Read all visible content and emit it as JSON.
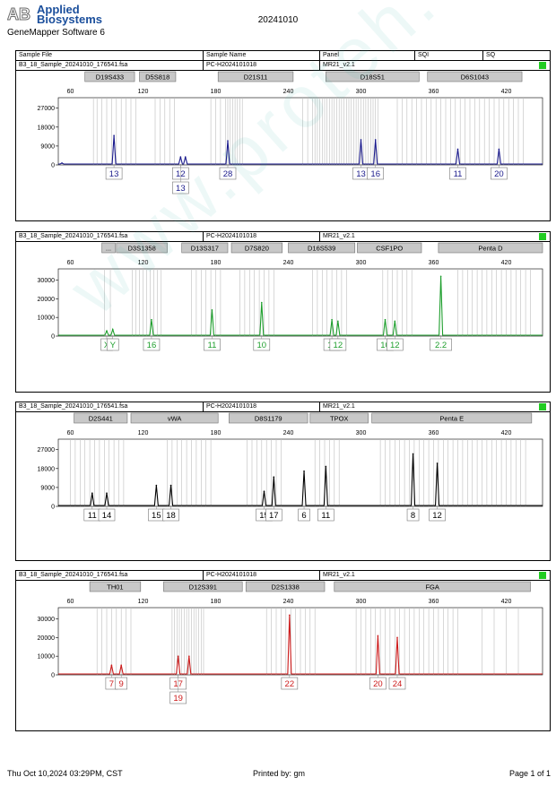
{
  "brand": {
    "line1": "Applied",
    "line2": "Biosystems",
    "software": "GeneMapper Software 6"
  },
  "run_date": "20241010",
  "header": {
    "sample_file": "Sample File",
    "sample_name": "Sample Name",
    "panel": "Panel",
    "sqi": "SQI",
    "sq": "SQ"
  },
  "footer": {
    "timestamp": "Thu Oct 10,2024 03:29PM, CST",
    "printed_by": "Printed by: gm",
    "page": "Page 1 of 1"
  },
  "watermark": "www.proteh.com.cn",
  "chart_data": [
    {
      "type": "line",
      "sample_file": "B3_18_Sample_20241010_176541.fsa",
      "sample_name": "PC-H2024101018",
      "panel": "MR21_v2.1",
      "color": "#1a1a8c",
      "xlim": [
        50,
        450
      ],
      "xticks": [
        60,
        120,
        180,
        240,
        300,
        360,
        420
      ],
      "ylim": [
        0,
        32000
      ],
      "yticks": [
        0,
        9000,
        18000,
        27000
      ],
      "markers": [
        {
          "label": "D19S433",
          "x0": 72,
          "x1": 113
        },
        {
          "label": "D5S818",
          "x0": 117,
          "x1": 147
        },
        {
          "label": "D21S11",
          "x0": 182,
          "x1": 244
        },
        {
          "label": "D18S51",
          "x0": 271,
          "x1": 348
        },
        {
          "label": "D6S1043",
          "x0": 355,
          "x1": 433
        }
      ],
      "bins": [
        79,
        82,
        86,
        90,
        94,
        98,
        102,
        106,
        110,
        114,
        130,
        134,
        138,
        142,
        146,
        176,
        180,
        184,
        188,
        190,
        192,
        194,
        196,
        198,
        200,
        202,
        252,
        256,
        260,
        262,
        264,
        266,
        268,
        270,
        272,
        274,
        276,
        278,
        280,
        282,
        284,
        286,
        288,
        290,
        292,
        294,
        296,
        298,
        300,
        302,
        304,
        306,
        308,
        310,
        312,
        314,
        330,
        334,
        338,
        342,
        346,
        350,
        354,
        358,
        362,
        366,
        370,
        374,
        378,
        382,
        386,
        390,
        394,
        398,
        402,
        406,
        410,
        414,
        418,
        422,
        426,
        430,
        434
      ],
      "peaks": [
        {
          "x": 53,
          "h": 900
        },
        {
          "x": 96,
          "h": 14000,
          "alleles": [
            "13"
          ]
        },
        {
          "x": 151,
          "h": 3800,
          "alleles": [
            "12",
            "13"
          ]
        },
        {
          "x": 155,
          "h": 3800
        },
        {
          "x": 190,
          "h": 11500,
          "alleles": [
            "28"
          ]
        },
        {
          "x": 300,
          "h": 12000,
          "alleles": [
            "13"
          ]
        },
        {
          "x": 312,
          "h": 12000,
          "alleles": [
            "16"
          ]
        },
        {
          "x": 380,
          "h": 7500,
          "alleles": [
            "11"
          ]
        },
        {
          "x": 414,
          "h": 7500,
          "alleles": [
            "20"
          ]
        }
      ]
    },
    {
      "type": "line",
      "sample_file": "B3_18_Sample_20241010_176541.fsa",
      "sample_name": "PC-H2024101018",
      "panel": "MR21_v2.1",
      "color": "#1d9e2c",
      "xlim": [
        50,
        450
      ],
      "xticks": [
        60,
        120,
        180,
        240,
        300,
        360,
        420
      ],
      "ylim": [
        0,
        36000
      ],
      "yticks": [
        0,
        10000,
        20000,
        30000
      ],
      "markers": [
        {
          "label": "...",
          "x0": 86,
          "x1": 97
        },
        {
          "label": "D3S1358",
          "x0": 98,
          "x1": 140
        },
        {
          "label": "D13S317",
          "x0": 152,
          "x1": 190
        },
        {
          "label": "D7S820",
          "x0": 193,
          "x1": 235
        },
        {
          "label": "D16S539",
          "x0": 240,
          "x1": 295
        },
        {
          "label": "CSF1PO",
          "x0": 297,
          "x1": 350
        },
        {
          "label": "Penta D",
          "x0": 364,
          "x1": 450
        }
      ],
      "bins": [
        88,
        93,
        111,
        114,
        117,
        120,
        123,
        126,
        129,
        132,
        135,
        160,
        164,
        168,
        172,
        176,
        180,
        184,
        200,
        204,
        208,
        212,
        216,
        220,
        224,
        228,
        260,
        264,
        268,
        272,
        276,
        280,
        284,
        288,
        318,
        322,
        326,
        330,
        334,
        338,
        342,
        380,
        384,
        388,
        392,
        396,
        400,
        404,
        408,
        412,
        416,
        420,
        424,
        428,
        432,
        436,
        440
      ],
      "peaks": [
        {
          "x": 90,
          "h": 2800,
          "alleles": [
            "X"
          ]
        },
        {
          "x": 95,
          "h": 3600,
          "alleles": [
            "Y"
          ]
        },
        {
          "x": 127,
          "h": 8800,
          "alleles": [
            "16"
          ]
        },
        {
          "x": 177,
          "h": 14000,
          "alleles": [
            "11"
          ]
        },
        {
          "x": 218,
          "h": 18000,
          "alleles": [
            "10"
          ]
        },
        {
          "x": 276,
          "h": 8800,
          "alleles": [
            "11"
          ]
        },
        {
          "x": 281,
          "h": 8000,
          "alleles": [
            "12"
          ]
        },
        {
          "x": 320,
          "h": 8800,
          "alleles": [
            "10"
          ]
        },
        {
          "x": 328,
          "h": 8000,
          "alleles": [
            "12"
          ]
        },
        {
          "x": 366,
          "h": 32000,
          "alleles": [
            "2.2"
          ]
        }
      ]
    },
    {
      "type": "line",
      "sample_file": "B3_18_Sample_20241010_176541.fsa",
      "sample_name": "PC-H2024101018",
      "panel": "MR21_v2.1",
      "color": "#000000",
      "xlim": [
        50,
        450
      ],
      "xticks": [
        60,
        120,
        180,
        240,
        300,
        360,
        420
      ],
      "ylim": [
        0,
        32000
      ],
      "yticks": [
        0,
        9000,
        18000,
        27000
      ],
      "markers": [
        {
          "label": "D2S441",
          "x0": 63,
          "x1": 107
        },
        {
          "label": "vWA",
          "x0": 110,
          "x1": 182
        },
        {
          "label": "D8S1179",
          "x0": 191,
          "x1": 256
        },
        {
          "label": "TPOX",
          "x0": 258,
          "x1": 306
        },
        {
          "label": "Penta E",
          "x0": 309,
          "x1": 441
        }
      ],
      "bins": [
        60,
        64,
        68,
        72,
        76,
        80,
        84,
        88,
        92,
        96,
        100,
        104,
        140,
        144,
        148,
        152,
        156,
        160,
        164,
        168,
        172,
        176,
        206,
        210,
        214,
        218,
        222,
        226,
        230,
        234,
        262,
        266,
        270,
        274,
        278,
        282,
        316,
        320,
        324,
        328,
        332,
        336,
        340,
        344,
        348,
        352,
        356,
        360,
        364,
        368,
        372,
        376,
        380,
        384,
        388,
        392,
        396,
        400,
        404,
        408,
        412,
        416,
        420,
        424,
        428,
        432,
        436
      ],
      "peaks": [
        {
          "x": 78,
          "h": 6300,
          "alleles": [
            "11"
          ]
        },
        {
          "x": 90,
          "h": 6300,
          "alleles": [
            "14"
          ]
        },
        {
          "x": 131,
          "h": 10000,
          "alleles": [
            "15"
          ]
        },
        {
          "x": 143,
          "h": 10000,
          "alleles": [
            "18"
          ]
        },
        {
          "x": 220,
          "h": 7200,
          "alleles": [
            "15"
          ]
        },
        {
          "x": 228,
          "h": 14000,
          "alleles": [
            "17"
          ]
        },
        {
          "x": 253,
          "h": 16800,
          "alleles": [
            "6"
          ]
        },
        {
          "x": 271,
          "h": 19000,
          "alleles": [
            "11"
          ]
        },
        {
          "x": 343,
          "h": 25000,
          "alleles": [
            "8"
          ]
        },
        {
          "x": 363,
          "h": 20500,
          "alleles": [
            "12"
          ]
        }
      ]
    },
    {
      "type": "line",
      "sample_file": "B3_18_Sample_20241010_176541.fsa",
      "sample_name": "PC-H2024101018",
      "panel": "MR21_v2.1",
      "color": "#cc1a1a",
      "xlim": [
        50,
        450
      ],
      "xticks": [
        60,
        120,
        180,
        240,
        300,
        360,
        420
      ],
      "ylim": [
        0,
        36000
      ],
      "yticks": [
        0,
        10000,
        20000,
        30000
      ],
      "markers": [
        {
          "label": "TH01",
          "x0": 76,
          "x1": 118
        },
        {
          "label": "D12S391",
          "x0": 137,
          "x1": 202
        },
        {
          "label": "D2S1338",
          "x0": 205,
          "x1": 270
        },
        {
          "label": "FGA",
          "x0": 278,
          "x1": 440
        }
      ],
      "bins": [
        82,
        86,
        90,
        94,
        98,
        102,
        106,
        110,
        144,
        146,
        148,
        150,
        152,
        154,
        156,
        158,
        160,
        162,
        164,
        166,
        168,
        170,
        222,
        226,
        230,
        234,
        238,
        242,
        246,
        250,
        254,
        258,
        262,
        296,
        300,
        304,
        308,
        312,
        316,
        320,
        324,
        328,
        332,
        336,
        340,
        344,
        348,
        352,
        356,
        360,
        364,
        368,
        372,
        376,
        380,
        400,
        410,
        420,
        430
      ],
      "peaks": [
        {
          "x": 94,
          "h": 5200,
          "alleles": [
            "7"
          ]
        },
        {
          "x": 102,
          "h": 5200,
          "alleles": [
            "9"
          ]
        },
        {
          "x": 149,
          "h": 10000,
          "alleles": [
            "17",
            "19"
          ]
        },
        {
          "x": 158,
          "h": 10000
        },
        {
          "x": 241,
          "h": 32000,
          "alleles": [
            "22"
          ]
        },
        {
          "x": 314,
          "h": 21000,
          "alleles": [
            "20"
          ]
        },
        {
          "x": 330,
          "h": 20000,
          "alleles": [
            "24"
          ]
        }
      ]
    }
  ]
}
